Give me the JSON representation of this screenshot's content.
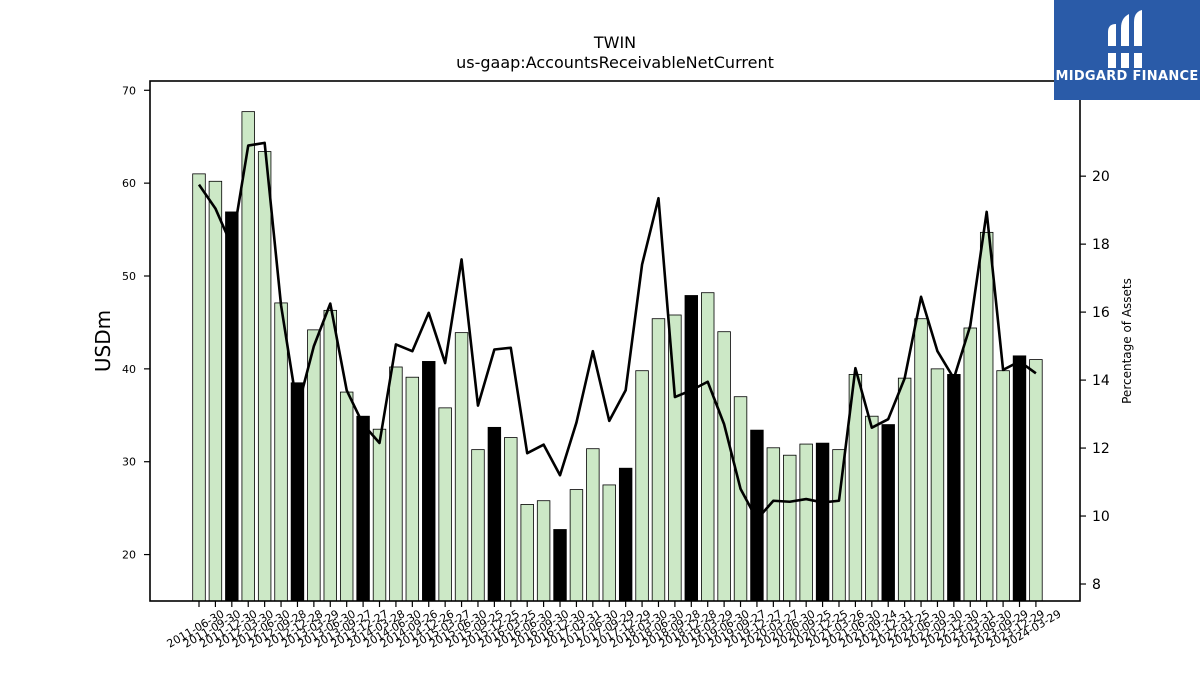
{
  "logo": {
    "text": "MIDGARD FINANCE"
  },
  "chart_data": {
    "type": "bar",
    "title": "TWIN",
    "subtitle": "us-gaap:AccountsReceivableNetCurrent",
    "ylabel": "USDm",
    "y2label": "Percentage of Assets",
    "ylim": [
      15,
      71
    ],
    "y2lim": [
      7.5,
      22.8
    ],
    "yticks": [
      20,
      30,
      40,
      50,
      60,
      70
    ],
    "y2ticks": [
      8,
      10,
      12,
      14,
      16,
      18,
      20
    ],
    "colors": {
      "bar_light": "#cce8c6",
      "bar_dark": "#000000",
      "line": "#000000"
    },
    "categories": [
      "2011-06-30",
      "2011-09-30",
      "2011-12-30",
      "2012-03-30",
      "2012-06-30",
      "2012-09-28",
      "2012-12-28",
      "2013-03-29",
      "2013-06-30",
      "2013-09-27",
      "2013-12-27",
      "2014-03-28",
      "2014-06-30",
      "2014-09-26",
      "2014-12-26",
      "2015-03-27",
      "2015-06-30",
      "2015-09-25",
      "2015-12-25",
      "2016-03-25",
      "2016-06-30",
      "2016-09-30",
      "2016-12-30",
      "2017-03-31",
      "2017-06-30",
      "2017-09-29",
      "2017-12-29",
      "2018-03-30",
      "2018-06-30",
      "2018-09-28",
      "2018-12-28",
      "2019-03-29",
      "2019-06-30",
      "2019-09-27",
      "2019-12-27",
      "2020-03-27",
      "2020-06-30",
      "2020-09-25",
      "2020-12-25",
      "2021-03-26",
      "2021-06-30",
      "2021-09-24",
      "2021-12-31",
      "2022-03-25",
      "2022-06-30",
      "2022-09-30",
      "2022-12-30",
      "2023-03-31",
      "2023-06-30",
      "2023-09-29",
      "2023-12-29",
      "2024-03-29"
    ],
    "series": [
      {
        "type": "bar",
        "values": [
          61.0,
          60.2,
          56.9,
          67.7,
          63.4,
          47.1,
          38.5,
          44.2,
          46.3,
          37.5,
          34.9,
          33.5,
          40.2,
          39.1,
          40.8,
          35.8,
          43.9,
          31.3,
          33.7,
          32.6,
          25.4,
          25.8,
          22.7,
          27.0,
          31.4,
          27.5,
          29.3,
          39.8,
          45.4,
          45.8,
          47.9,
          48.2,
          44.0,
          37.0,
          33.4,
          31.5,
          30.7,
          31.9,
          32.0,
          31.3,
          39.4,
          34.9,
          34.0,
          39.0,
          45.4,
          40.0,
          39.4,
          44.4,
          54.7,
          39.8,
          41.4,
          41.0
        ],
        "dark": [
          false,
          false,
          true,
          false,
          false,
          false,
          true,
          false,
          false,
          false,
          true,
          false,
          false,
          false,
          true,
          false,
          false,
          false,
          true,
          false,
          false,
          false,
          true,
          false,
          false,
          false,
          true,
          false,
          false,
          false,
          true,
          false,
          false,
          false,
          true,
          false,
          false,
          false,
          true,
          false,
          false,
          false,
          true,
          false,
          false,
          false,
          true,
          false,
          false,
          false,
          true,
          false
        ]
      },
      {
        "type": "line",
        "axis": "right",
        "values": [
          19.75,
          19.05,
          17.95,
          20.9,
          20.98,
          16.2,
          13.15,
          15.0,
          16.25,
          13.7,
          12.7,
          12.15,
          15.05,
          14.85,
          15.98,
          14.5,
          17.55,
          13.25,
          14.9,
          14.95,
          11.85,
          12.1,
          11.2,
          12.75,
          14.85,
          12.8,
          13.7,
          17.4,
          19.35,
          13.5,
          13.7,
          13.95,
          12.7,
          10.8,
          9.9,
          10.45,
          10.42,
          10.5,
          10.4,
          10.45,
          14.35,
          12.6,
          12.85,
          14.05,
          16.45,
          14.85,
          14.05,
          15.6,
          18.95,
          14.3,
          14.55,
          14.2
        ]
      }
    ]
  }
}
